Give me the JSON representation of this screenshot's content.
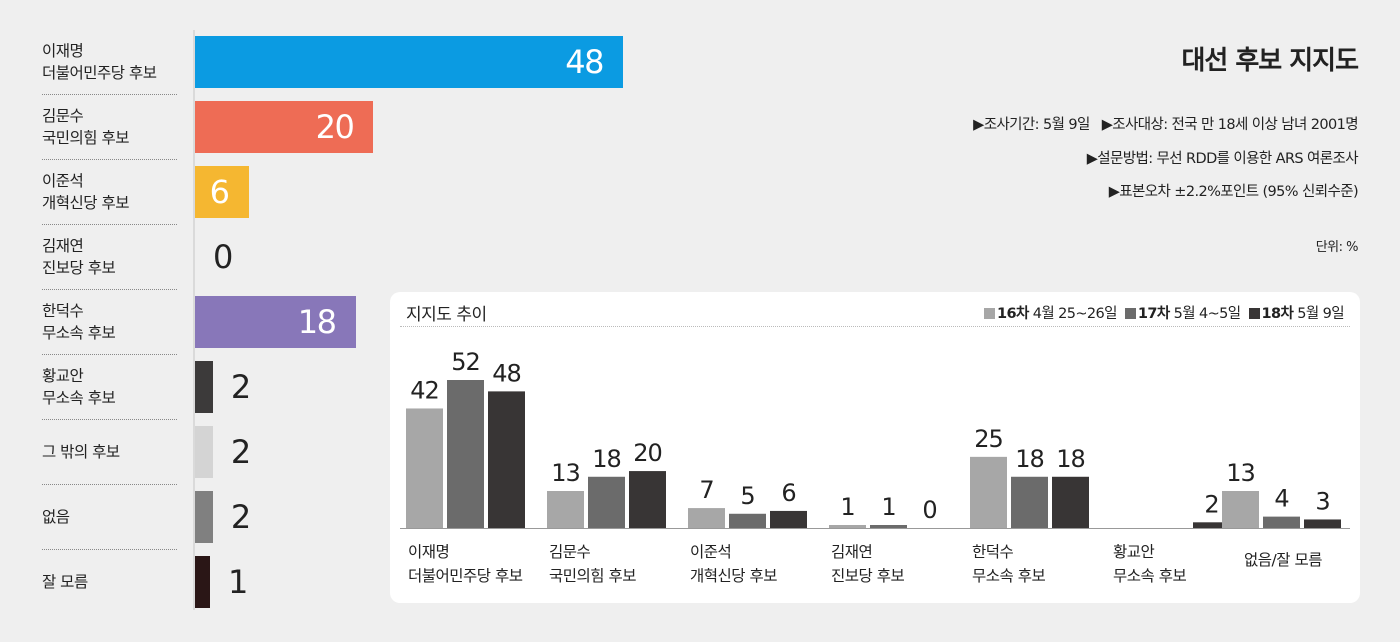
{
  "title": "대선 후보 지지도",
  "survey": {
    "period": "▶조사기간: 5월 9일",
    "target": "▶조사대상: 전국 만 18세 이상 남녀 2001명",
    "method": "▶설문방법: 무선 RDD를 이용한 ARS 여론조사",
    "error": "▶표본오차 ±2.2%포인트 (95% 신뢰수준)"
  },
  "unit": "단위: %",
  "chart_data": [
    {
      "type": "bar",
      "orientation": "horizontal",
      "categories": [
        [
          "이재명",
          "더불어민주당 후보"
        ],
        [
          "김문수",
          "국민의힘 후보"
        ],
        [
          "이준석",
          "개혁신당 후보"
        ],
        [
          "김재연",
          "진보당 후보"
        ],
        [
          "한덕수",
          "무소속 후보"
        ],
        [
          "황교안",
          "무소속 후보"
        ],
        [
          "그 밖의 후보"
        ],
        [
          "없음"
        ],
        [
          "잘 모름"
        ]
      ],
      "values": [
        48,
        20,
        6,
        0,
        18,
        2,
        2,
        2,
        1
      ],
      "colors": [
        "#0b9be2",
        "#ee6c55",
        "#f5b731",
        "#cccccc",
        "#8877b9",
        "#3c3a3a",
        "#d4d4d4",
        "#808080",
        "#2a1616"
      ]
    },
    {
      "type": "bar",
      "title": "지지도 추이",
      "categories": [
        [
          "이재명",
          "더불어민주당 후보"
        ],
        [
          "김문수",
          "국민의힘 후보"
        ],
        [
          "이준석",
          "개혁신당 후보"
        ],
        [
          "김재연",
          "진보당 후보"
        ],
        [
          "한덕수",
          "무소속 후보"
        ],
        [
          "황교안",
          "무소속 후보"
        ],
        [
          "없음/잘 모름"
        ]
      ],
      "series": [
        {
          "name": "16차",
          "label": "4월 25~26일",
          "color": "#a7a7a7",
          "values": [
            42,
            13,
            7,
            1,
            25,
            null,
            13
          ]
        },
        {
          "name": "17차",
          "label": "5월 4~5일",
          "color": "#6b6b6b",
          "values": [
            52,
            18,
            5,
            1,
            18,
            null,
            4
          ]
        },
        {
          "name": "18차",
          "label": "5월 9일",
          "color": "#383535",
          "values": [
            48,
            20,
            6,
            0,
            18,
            2,
            3
          ]
        }
      ]
    }
  ]
}
